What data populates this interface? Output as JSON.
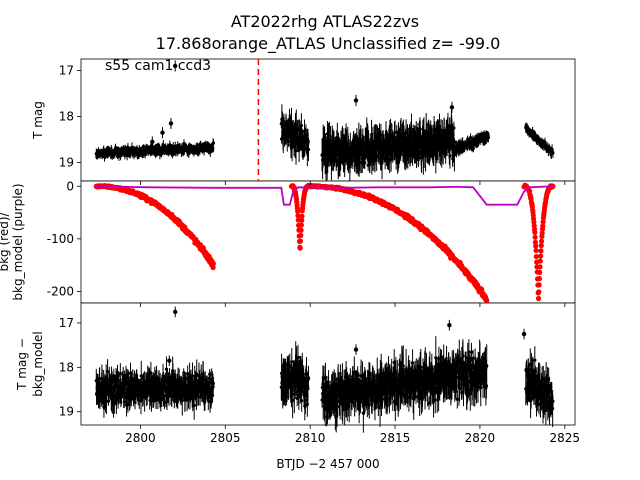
{
  "title": {
    "line1": "AT2022rhg  ATLAS22zvs",
    "line2": "17.868orange_ATLAS Unclassified z= -99.0"
  },
  "annotation": "s55 cam1 ccd3",
  "xlabel": "BTJD −2 457 000",
  "x_ticks": [
    2800,
    2805,
    2810,
    2815,
    2820,
    2825
  ],
  "xlim": [
    2796.5,
    2825.6
  ],
  "colors": {
    "data": "#000000",
    "bkg": "#ff0000",
    "model": "#bf00bf",
    "marker_line": "#ff0000"
  },
  "chart_data": [
    {
      "type": "scatter",
      "name": "top",
      "ylabel": "T mag",
      "ylim": [
        19.4,
        16.75
      ],
      "y_ticks": [
        17,
        18,
        19
      ],
      "vline_x": 2806.95,
      "series": [
        {
          "segment_x": [
            2797.4,
            2804.3
          ],
          "y_start": 18.8,
          "y_end": 18.67,
          "spread": 0.14,
          "err": 0.08
        },
        {
          "segment_x": [
            2808.3,
            2809.9
          ],
          "y_start": 18.25,
          "y_end": 18.6,
          "spread": 0.45,
          "err": 0.25
        },
        {
          "segment_x": [
            2810.7,
            2818.5
          ],
          "y_start": 18.75,
          "y_end": 18.55,
          "spread": 0.45,
          "err": 0.3
        },
        {
          "segment_x": [
            2818.5,
            2820.5
          ],
          "y_start": 18.7,
          "y_end": 18.45,
          "spread": 0.18,
          "err": 0.08
        },
        {
          "segment_x": [
            2822.7,
            2824.3
          ],
          "y_start": 18.25,
          "y_end": 18.8,
          "spread": 0.12,
          "err": 0.08
        }
      ],
      "outliers": [
        {
          "x": 2801.3,
          "y": 18.35
        },
        {
          "x": 2801.8,
          "y": 18.15
        },
        {
          "x": 2802.05,
          "y": 16.9
        },
        {
          "x": 2812.7,
          "y": 17.65
        },
        {
          "x": 2818.35,
          "y": 17.8
        },
        {
          "x": 2800.7,
          "y": 18.55
        }
      ]
    },
    {
      "type": "scatter",
      "name": "middle",
      "ylabel_line1": "bkg (red)/",
      "ylabel_line2": "bkg_model (purple)",
      "ylim": [
        -222,
        10
      ],
      "y_ticks": [
        0,
        -100,
        -200
      ],
      "bkg_segments": [
        {
          "x": [
            2797.4,
            2804.3
          ],
          "shape": "ramp",
          "y_end": -150
        },
        {
          "x": [
            2808.9,
            2809.9
          ],
          "shape": "dip",
          "y_min": -125
        },
        {
          "x": [
            2809.9,
            2820.4
          ],
          "shape": "ramp",
          "y_end": -215
        },
        {
          "x": [
            2822.6,
            2824.3
          ],
          "shape": "dip",
          "y_min": -215
        }
      ],
      "model_points": [
        [
          2797.4,
          0
        ],
        [
          2800.5,
          -2
        ],
        [
          2804.3,
          -3
        ],
        [
          2808.3,
          -3
        ],
        [
          2808.45,
          -35
        ],
        [
          2808.8,
          -35
        ],
        [
          2809.0,
          -10
        ],
        [
          2809.3,
          -2
        ],
        [
          2812.0,
          -3
        ],
        [
          2814.0,
          -2
        ],
        [
          2817.0,
          -2
        ],
        [
          2818.7,
          -1
        ],
        [
          2819.6,
          -2
        ],
        [
          2820.4,
          -35
        ],
        [
          2822.2,
          -35
        ],
        [
          2822.6,
          -10
        ],
        [
          2822.9,
          -2
        ],
        [
          2824.3,
          0
        ]
      ]
    },
    {
      "type": "scatter",
      "name": "bottom",
      "ylabel_line1": "T mag −",
      "ylabel_line2": "bkg_model",
      "ylim": [
        19.3,
        16.55
      ],
      "y_ticks": [
        17,
        18,
        19
      ],
      "series": [
        {
          "segment_x": [
            2797.4,
            2804.3
          ],
          "y_start": 18.5,
          "y_end": 18.45,
          "spread": 0.5,
          "err": 0.25
        },
        {
          "segment_x": [
            2808.3,
            2809.9
          ],
          "y_start": 18.25,
          "y_end": 18.4,
          "spread": 0.7,
          "err": 0.35
        },
        {
          "segment_x": [
            2810.7,
            2820.4
          ],
          "y_start": 18.65,
          "y_end": 18.1,
          "spread": 0.6,
          "err": 0.35
        },
        {
          "segment_x": [
            2822.7,
            2824.3
          ],
          "y_start": 18.2,
          "y_end": 18.8,
          "spread": 0.6,
          "err": 0.3
        }
      ],
      "outliers": [
        {
          "x": 2802.05,
          "y": 16.75
        },
        {
          "x": 2818.2,
          "y": 17.05
        },
        {
          "x": 2822.6,
          "y": 17.25
        },
        {
          "x": 2812.7,
          "y": 17.6
        },
        {
          "x": 2801.7,
          "y": 17.85
        },
        {
          "x": 2797.6,
          "y": 18.75
        }
      ]
    }
  ]
}
